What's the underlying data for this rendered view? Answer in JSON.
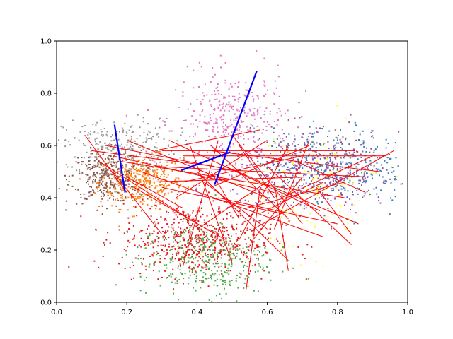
{
  "chart_data": {
    "type": "scatter",
    "title": "",
    "xlabel": "",
    "ylabel": "",
    "xlim": [
      0,
      1
    ],
    "ylim": [
      0,
      1
    ],
    "grid": false,
    "legend": "none",
    "x_ticks": [
      "0.0",
      "0.2",
      "0.4",
      "0.6",
      "0.8",
      "1.0"
    ],
    "y_ticks": [
      "0.0",
      "0.2",
      "0.4",
      "0.6",
      "0.8",
      "1.0"
    ],
    "clusters": [
      {
        "color": "#ff7f0e",
        "center": [
          0.24,
          0.46
        ],
        "spread": [
          0.06,
          0.05
        ],
        "count": 380
      },
      {
        "color": "#8c564b",
        "center": [
          0.14,
          0.48
        ],
        "spread": [
          0.05,
          0.05
        ],
        "count": 320
      },
      {
        "color": "#999999",
        "center": [
          0.18,
          0.6
        ],
        "spread": [
          0.08,
          0.05
        ],
        "count": 260
      },
      {
        "color": "#e377c2",
        "center": [
          0.5,
          0.7
        ],
        "spread": [
          0.08,
          0.09
        ],
        "count": 360
      },
      {
        "color": "#e41a1c",
        "center": [
          0.4,
          0.24
        ],
        "spread": [
          0.11,
          0.07
        ],
        "count": 620
      },
      {
        "color": "#4daf4a",
        "center": [
          0.42,
          0.16
        ],
        "spread": [
          0.09,
          0.07
        ],
        "count": 360
      },
      {
        "color": "#377eb8",
        "center": [
          0.78,
          0.52
        ],
        "spread": [
          0.11,
          0.07
        ],
        "count": 420
      },
      {
        "color": "#984ea3",
        "center": [
          0.74,
          0.5
        ],
        "spread": [
          0.12,
          0.08
        ],
        "count": 400
      },
      {
        "color": "#ffff33",
        "center": [
          0.7,
          0.42
        ],
        "spread": [
          0.12,
          0.12
        ],
        "count": 150
      }
    ],
    "red_lines": [
      [
        [
          0.08,
          0.64
        ],
        [
          0.2,
          0.42
        ]
      ],
      [
        [
          0.1,
          0.58
        ],
        [
          0.45,
          0.52
        ]
      ],
      [
        [
          0.14,
          0.6
        ],
        [
          0.52,
          0.5
        ]
      ],
      [
        [
          0.16,
          0.56
        ],
        [
          0.62,
          0.42
        ]
      ],
      [
        [
          0.18,
          0.54
        ],
        [
          0.82,
          0.4
        ]
      ],
      [
        [
          0.2,
          0.62
        ],
        [
          0.6,
          0.4
        ]
      ],
      [
        [
          0.24,
          0.5
        ],
        [
          0.76,
          0.25
        ]
      ],
      [
        [
          0.28,
          0.52
        ],
        [
          0.88,
          0.48
        ]
      ],
      [
        [
          0.3,
          0.58
        ],
        [
          0.85,
          0.58
        ]
      ],
      [
        [
          0.32,
          0.62
        ],
        [
          0.75,
          0.35
        ]
      ],
      [
        [
          0.36,
          0.56
        ],
        [
          0.94,
          0.56
        ]
      ],
      [
        [
          0.38,
          0.6
        ],
        [
          0.5,
          0.15
        ]
      ],
      [
        [
          0.4,
          0.5
        ],
        [
          0.66,
          0.16
        ]
      ],
      [
        [
          0.42,
          0.46
        ],
        [
          0.6,
          0.28
        ]
      ],
      [
        [
          0.44,
          0.58
        ],
        [
          0.92,
          0.5
        ]
      ],
      [
        [
          0.46,
          0.62
        ],
        [
          0.36,
          0.14
        ]
      ],
      [
        [
          0.48,
          0.52
        ],
        [
          0.86,
          0.3
        ]
      ],
      [
        [
          0.5,
          0.64
        ],
        [
          0.7,
          0.3
        ]
      ],
      [
        [
          0.52,
          0.6
        ],
        [
          0.62,
          0.4
        ]
      ],
      [
        [
          0.54,
          0.36
        ],
        [
          0.82,
          0.46
        ]
      ],
      [
        [
          0.56,
          0.28
        ],
        [
          0.96,
          0.58
        ]
      ],
      [
        [
          0.58,
          0.44
        ],
        [
          0.54,
          0.05
        ]
      ],
      [
        [
          0.6,
          0.52
        ],
        [
          0.84,
          0.22
        ]
      ],
      [
        [
          0.62,
          0.46
        ],
        [
          0.66,
          0.12
        ]
      ],
      [
        [
          0.64,
          0.4
        ],
        [
          0.9,
          0.56
        ]
      ],
      [
        [
          0.66,
          0.32
        ],
        [
          0.44,
          0.6
        ]
      ],
      [
        [
          0.68,
          0.54
        ],
        [
          0.88,
          0.42
        ]
      ],
      [
        [
          0.7,
          0.48
        ],
        [
          0.56,
          0.24
        ]
      ],
      [
        [
          0.72,
          0.6
        ],
        [
          0.44,
          0.44
        ]
      ],
      [
        [
          0.26,
          0.46
        ],
        [
          0.72,
          0.48
        ]
      ],
      [
        [
          0.22,
          0.44
        ],
        [
          0.48,
          0.24
        ]
      ],
      [
        [
          0.3,
          0.44
        ],
        [
          0.64,
          0.34
        ]
      ],
      [
        [
          0.34,
          0.4
        ],
        [
          0.6,
          0.62
        ]
      ],
      [
        [
          0.12,
          0.54
        ],
        [
          0.4,
          0.3
        ]
      ],
      [
        [
          0.4,
          0.28
        ],
        [
          0.62,
          0.48
        ]
      ],
      [
        [
          0.52,
          0.24
        ],
        [
          0.66,
          0.6
        ]
      ],
      [
        [
          0.58,
          0.34
        ],
        [
          0.76,
          0.46
        ]
      ],
      [
        [
          0.46,
          0.4
        ],
        [
          0.8,
          0.3
        ]
      ],
      [
        [
          0.36,
          0.46
        ],
        [
          0.7,
          0.56
        ]
      ],
      [
        [
          0.28,
          0.58
        ],
        [
          0.58,
          0.66
        ]
      ],
      [
        [
          0.2,
          0.48
        ],
        [
          0.36,
          0.36
        ]
      ],
      [
        [
          0.62,
          0.28
        ],
        [
          0.72,
          0.62
        ]
      ],
      [
        [
          0.74,
          0.44
        ],
        [
          0.84,
          0.26
        ]
      ],
      [
        [
          0.44,
          0.5
        ],
        [
          0.52,
          0.32
        ]
      ],
      [
        [
          0.16,
          0.5
        ],
        [
          0.3,
          0.26
        ]
      ]
    ],
    "blue_lines": [
      [
        [
          0.165,
          0.68
        ],
        [
          0.195,
          0.42
        ]
      ],
      [
        [
          0.355,
          0.505
        ],
        [
          0.495,
          0.575
        ]
      ],
      [
        [
          0.45,
          0.45
        ],
        [
          0.57,
          0.885
        ]
      ]
    ]
  }
}
